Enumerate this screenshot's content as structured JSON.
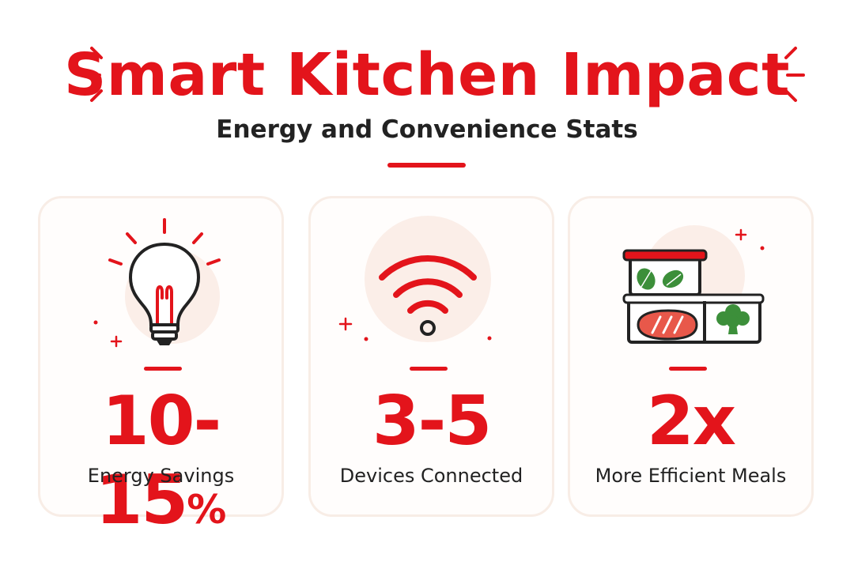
{
  "header": {
    "title": "Smart Kitchen Impact",
    "subtitle": "Energy and Convenience Stats"
  },
  "colors": {
    "accent": "#e3141b",
    "text": "#222222",
    "icon_backdrop": "#fbeee8",
    "card_border": "#f8ede6",
    "leaf_green": "#3c8f3a",
    "salmon": "#e8584a"
  },
  "stats": [
    {
      "value": "10-15",
      "unit": "%",
      "label": "Energy Savings",
      "icon": "lightbulb-icon"
    },
    {
      "value": "3-5",
      "unit": "",
      "label": "Devices Connected",
      "icon": "wifi-icon"
    },
    {
      "value": "2x",
      "unit": "",
      "label": "More Efficient Meals",
      "icon": "meal-prep-containers-icon"
    }
  ]
}
